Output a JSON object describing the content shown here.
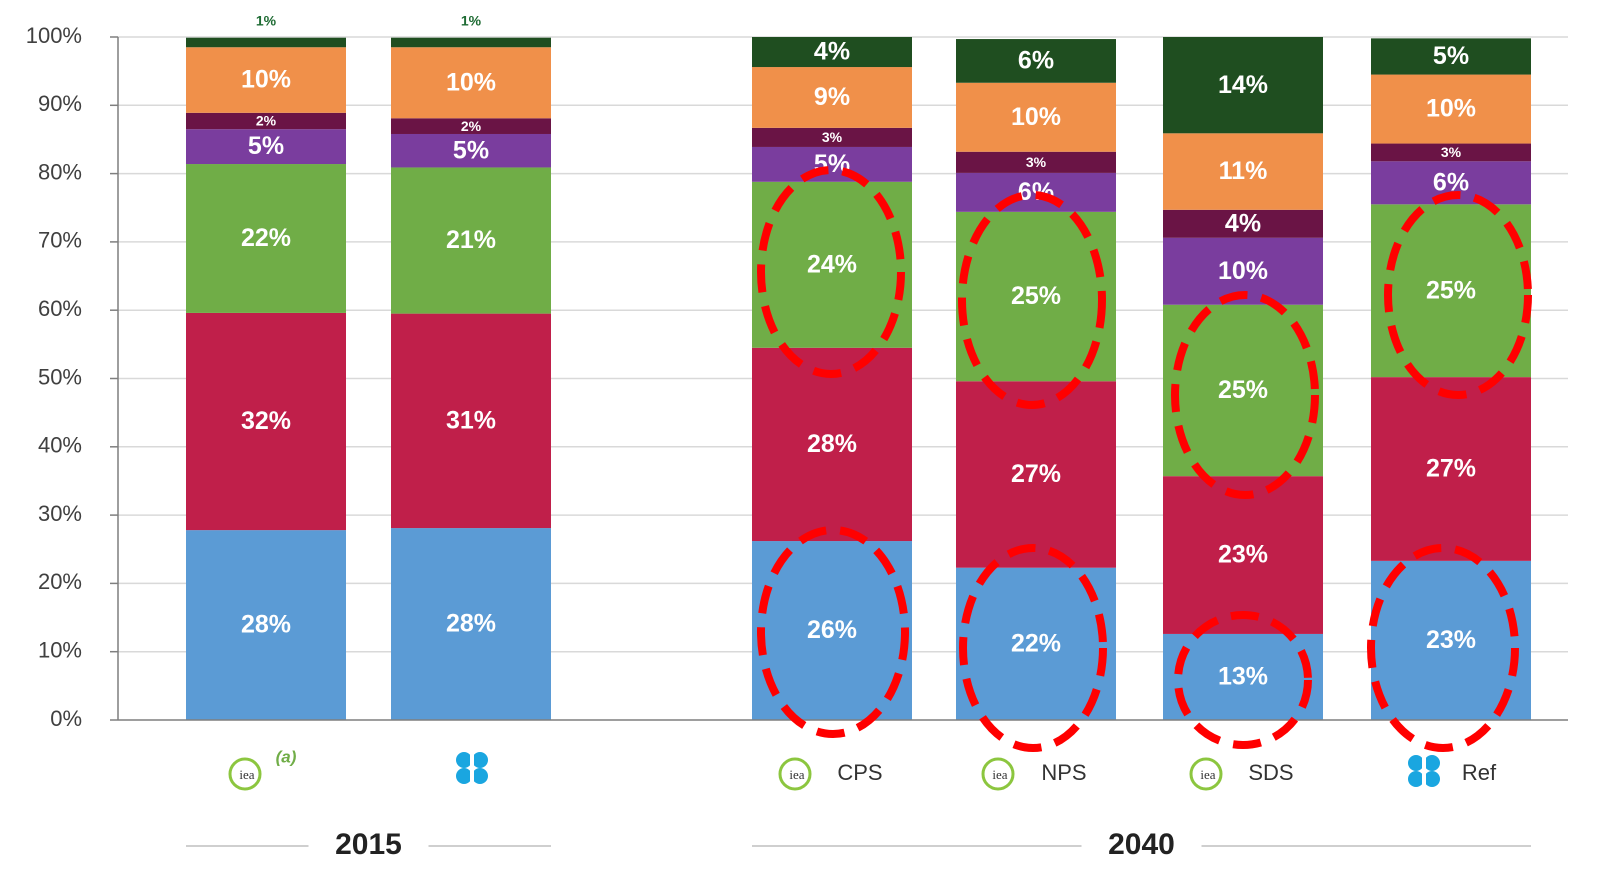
{
  "chart_data": {
    "type": "stacked-bar",
    "categories": [
      "(a)",
      null,
      "CPS",
      "NPS",
      "SDS",
      "Ref"
    ],
    "groups": [
      {
        "label": "2015",
        "start": 0,
        "end": 1
      },
      {
        "label": "2040",
        "start": 2,
        "end": 5
      }
    ],
    "ylim": [
      0,
      100
    ],
    "yticks": [
      {
        "value": 0,
        "label": "0%"
      },
      {
        "value": 10,
        "label": "10%"
      },
      {
        "value": 20,
        "label": "20%"
      },
      {
        "value": 30,
        "label": "30%"
      },
      {
        "value": 40,
        "label": "40%"
      },
      {
        "value": 50,
        "label": "50%"
      },
      {
        "value": 60,
        "label": "60%"
      },
      {
        "value": 70,
        "label": "70%"
      },
      {
        "value": 80,
        "label": "80%"
      },
      {
        "value": 90,
        "label": "90%"
      },
      {
        "value": 100,
        "label": "100%"
      }
    ],
    "grid": true,
    "series": [
      {
        "color": "#5b9bd5",
        "values": [
          27.8,
          28.1,
          26.2,
          22.3,
          12.6,
          23.3
        ],
        "value_labels": [
          "28%",
          "28%",
          "26%",
          "22%",
          "13%",
          "23%"
        ]
      },
      {
        "color": "#c01f4a",
        "values": [
          31.8,
          31.4,
          28.3,
          27.3,
          23.1,
          26.9
        ],
        "value_labels": [
          "32%",
          "31%",
          "28%",
          "27%",
          "23%",
          "27%"
        ]
      },
      {
        "color": "#70ad47",
        "values": [
          21.8,
          21.4,
          24.3,
          24.8,
          25.1,
          25.3
        ],
        "value_labels": [
          "22%",
          "21%",
          "24%",
          "25%",
          "25%",
          "25%"
        ]
      },
      {
        "color": "#7a3d9e",
        "values": [
          5.1,
          4.9,
          5.1,
          5.7,
          9.8,
          6.3
        ],
        "value_labels": [
          "5%",
          "5%",
          "5%",
          "6%",
          "10%",
          "6%"
        ]
      },
      {
        "color": "#6a1445",
        "values": [
          2.4,
          2.3,
          2.8,
          3.1,
          4.1,
          2.6
        ],
        "value_labels": [
          "2%",
          "2%",
          "3%",
          "3%",
          "4%",
          "3%"
        ]
      },
      {
        "color": "#f0904a",
        "values": [
          9.6,
          10.4,
          8.9,
          10.1,
          11.2,
          10.1
        ],
        "value_labels": [
          "10%",
          "10%",
          "9%",
          "10%",
          "11%",
          "10%"
        ]
      },
      {
        "color": "#1f4e20",
        "values": [
          1.4,
          1.4,
          4.4,
          6.4,
          14.1,
          5.3
        ],
        "value_labels": [
          "1%",
          "1%",
          "4%",
          "6%",
          "14%",
          "5%"
        ]
      }
    ]
  }
}
